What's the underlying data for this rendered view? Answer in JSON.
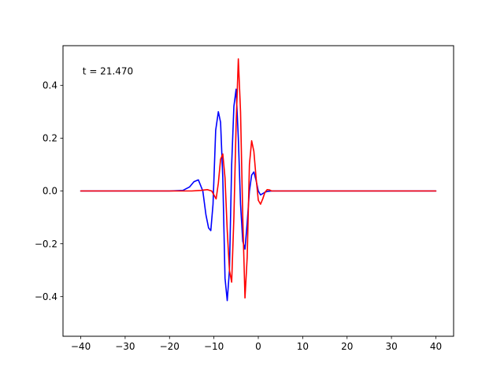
{
  "chart_data": {
    "type": "line",
    "title": "",
    "xlabel": "",
    "ylabel": "",
    "xlim": [
      -44,
      44
    ],
    "ylim": [
      -0.55,
      0.55
    ],
    "xticks": [
      -40,
      -30,
      -20,
      -10,
      0,
      10,
      20,
      30,
      40
    ],
    "xtick_labels": [
      "−40",
      "−30",
      "−20",
      "−10",
      "0",
      "10",
      "20",
      "30",
      "40"
    ],
    "yticks": [
      -0.4,
      -0.2,
      0.0,
      0.2,
      0.4
    ],
    "ytick_labels": [
      "−0.4",
      "−0.2",
      "0.0",
      "0.2",
      "0.4"
    ],
    "grid": false,
    "annotation": "t = 21.470",
    "series": [
      {
        "color": "#0000ff",
        "x": [
          -40,
          -20,
          -17,
          -15.5,
          -14.5,
          -13.5,
          -12.5,
          -11.8,
          -11.2,
          -10.7,
          -10.2,
          -9.6,
          -9.0,
          -8.5,
          -8.0,
          -7.5,
          -7.0,
          -6.5,
          -6.0,
          -5.5,
          -5.0,
          -4.5,
          -4.0,
          -3.5,
          -3.0,
          -2.5,
          -2.0,
          -1.5,
          -1.0,
          -0.5,
          0.0,
          0.5,
          1.0,
          1.5,
          2.0,
          3.0,
          5.0,
          40
        ],
        "y": [
          0.0,
          0.0,
          0.002,
          0.015,
          0.035,
          0.042,
          0.0,
          -0.09,
          -0.14,
          -0.15,
          -0.05,
          0.23,
          0.3,
          0.26,
          0.05,
          -0.33,
          -0.415,
          -0.3,
          0.1,
          0.32,
          0.385,
          0.2,
          -0.05,
          -0.19,
          -0.22,
          -0.12,
          0.0,
          0.06,
          0.072,
          0.04,
          0.0,
          -0.015,
          -0.01,
          -0.005,
          -0.002,
          0.0,
          0.0,
          0.0
        ]
      },
      {
        "color": "#ff0000",
        "x": [
          -40,
          -15,
          -13,
          -11.5,
          -10.5,
          -9.5,
          -9.0,
          -8.5,
          -8.0,
          -7.5,
          -7.0,
          -6.5,
          -6.0,
          -5.5,
          -5.0,
          -4.5,
          -4.0,
          -3.5,
          -3.0,
          -2.5,
          -2.0,
          -1.5,
          -1.0,
          -0.5,
          0.0,
          0.5,
          1.0,
          1.5,
          2.0,
          2.5,
          3.0,
          4.0,
          40
        ],
        "y": [
          0.0,
          0.0,
          0.002,
          0.005,
          0.0,
          -0.03,
          0.03,
          0.12,
          0.14,
          0.05,
          -0.15,
          -0.3,
          -0.345,
          -0.1,
          0.25,
          0.5,
          0.3,
          -0.1,
          -0.405,
          -0.25,
          0.1,
          0.19,
          0.15,
          0.05,
          -0.035,
          -0.05,
          -0.03,
          -0.005,
          0.005,
          0.004,
          0.0,
          0.0,
          0.0
        ]
      }
    ]
  }
}
